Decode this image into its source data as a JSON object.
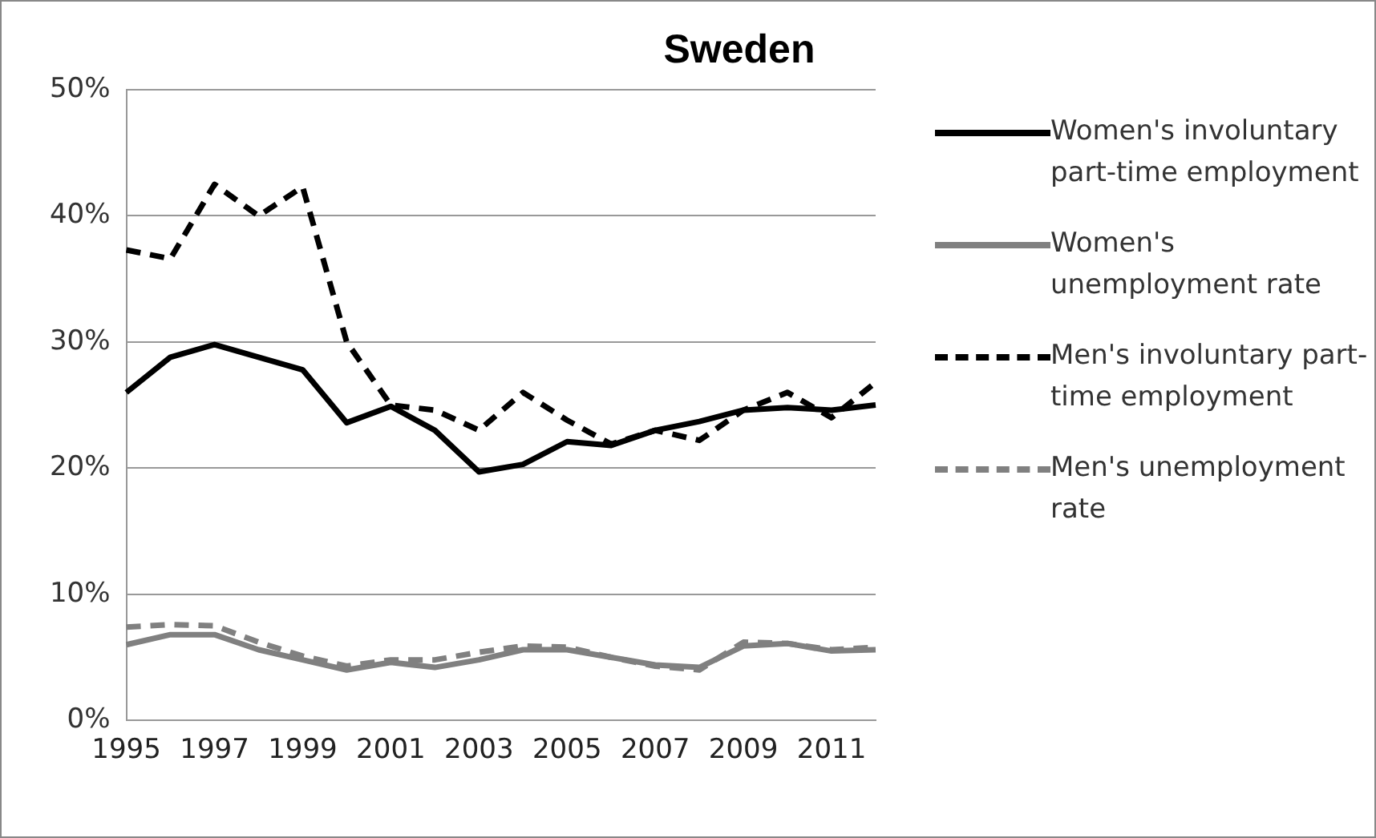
{
  "chart_data": {
    "type": "line",
    "title": "Sweden",
    "categories": [
      "1995",
      null,
      "1997",
      null,
      "1999",
      null,
      "2001",
      null,
      "2003",
      null,
      "2005",
      null,
      "2007",
      null,
      "2009",
      null,
      "2011",
      null
    ],
    "series": [
      {
        "name": "Women's involuntary part-time employment",
        "color": "#000000",
        "line_style": "solid",
        "values": [
          26,
          28.8,
          29.8,
          28.8,
          27.8,
          23.6,
          24.9,
          23,
          19.7,
          20.3,
          22.1,
          21.8,
          23,
          23.7,
          24.6,
          24.8,
          24.6,
          25
        ]
      },
      {
        "name": "Women's unemployment rate",
        "color": "#808080",
        "line_style": "solid",
        "values": [
          6,
          6.8,
          6.8,
          5.6,
          4.8,
          4,
          4.6,
          4.2,
          4.8,
          5.6,
          5.6,
          5,
          4.4,
          4.2,
          5.9,
          6.1,
          5.5,
          5.6
        ]
      },
      {
        "name": "Men's involuntary part-time employment",
        "color": "#000000",
        "line_style": "dashed",
        "values": [
          37.3,
          36.6,
          42.5,
          40,
          42.3,
          30,
          25,
          24.6,
          23,
          26,
          23.8,
          21.9,
          23,
          22.2,
          24.6,
          26,
          24,
          26.8
        ]
      },
      {
        "name": "Men's unemployment rate",
        "color": "#808080",
        "line_style": "dashed",
        "values": [
          7.4,
          7.6,
          7.5,
          6.2,
          5.1,
          4.3,
          4.8,
          4.8,
          5.4,
          5.9,
          5.8,
          5,
          4.3,
          4,
          6.2,
          6.1,
          5.6,
          5.8
        ]
      }
    ],
    "ylim": [
      0,
      50
    ],
    "yticks": [
      {
        "value": 0,
        "label": "0%"
      },
      {
        "value": 10,
        "label": "10%"
      },
      {
        "value": 20,
        "label": "20%"
      },
      {
        "value": 30,
        "label": "30%"
      },
      {
        "value": 40,
        "label": "40%"
      },
      {
        "value": 50,
        "label": "50%"
      }
    ],
    "grid": "y",
    "legend": "right",
    "marker": "none"
  }
}
